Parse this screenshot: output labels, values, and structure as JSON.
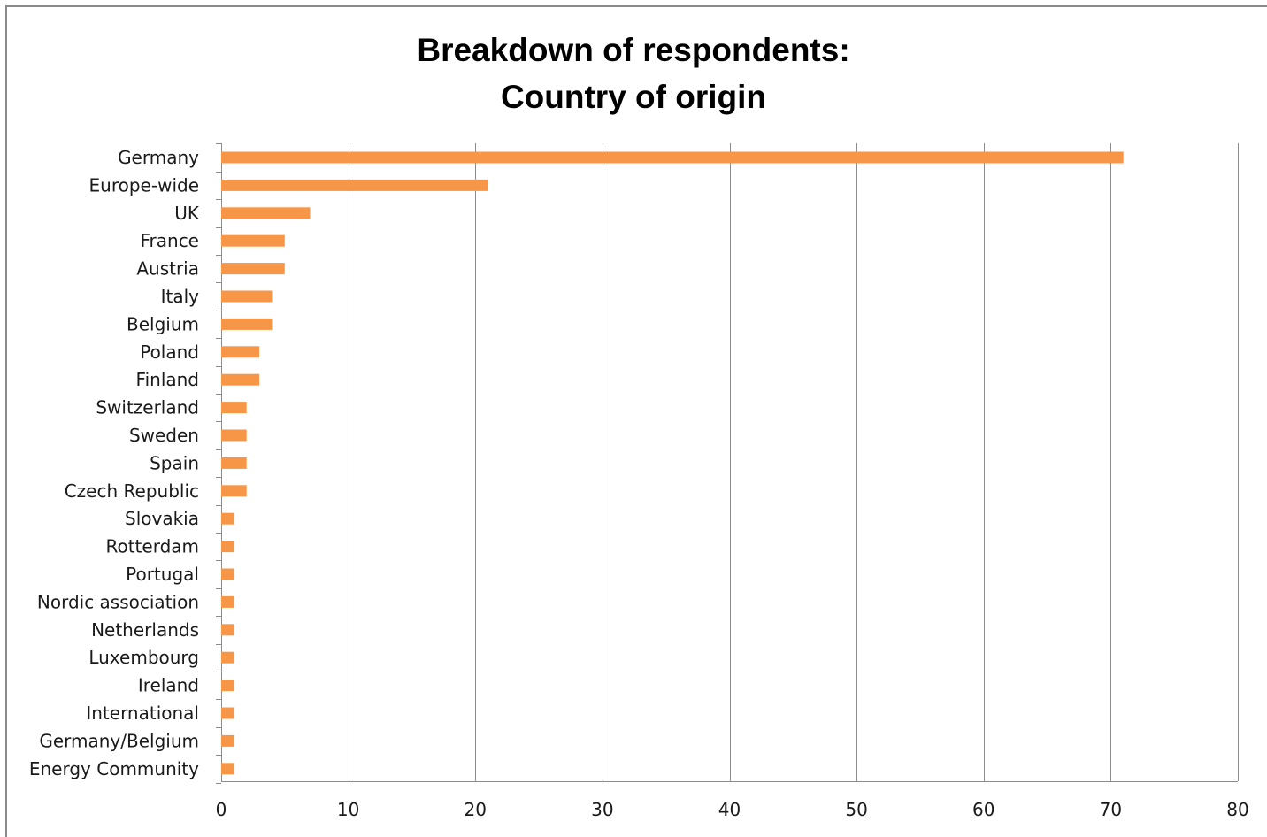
{
  "chart_data": {
    "type": "bar",
    "orientation": "horizontal",
    "title_lines": [
      "Breakdown of respondents:",
      "Country of origin"
    ],
    "categories": [
      "Germany",
      "Europe-wide",
      "UK",
      "France",
      "Austria",
      "Italy",
      "Belgium",
      "Poland",
      "Finland",
      "Switzerland",
      "Sweden",
      "Spain",
      "Czech Republic",
      "Slovakia",
      "Rotterdam",
      "Portugal",
      "Nordic association",
      "Netherlands",
      "Luxembourg",
      "Ireland",
      "International",
      "Germany/Belgium",
      "Energy Community"
    ],
    "values": [
      71,
      21,
      7,
      5,
      5,
      4,
      4,
      3,
      3,
      2,
      2,
      2,
      2,
      1,
      1,
      1,
      1,
      1,
      1,
      1,
      1,
      1,
      1
    ],
    "xlabel": "",
    "ylabel": "",
    "xlim": [
      0,
      80
    ],
    "xticks": [
      "0",
      "10",
      "20",
      "30",
      "40",
      "50",
      "60",
      "70",
      "80"
    ],
    "grid": "vertical",
    "legend": "none",
    "bar_color": "#F79646",
    "grid_color": "#8c8c8c"
  }
}
